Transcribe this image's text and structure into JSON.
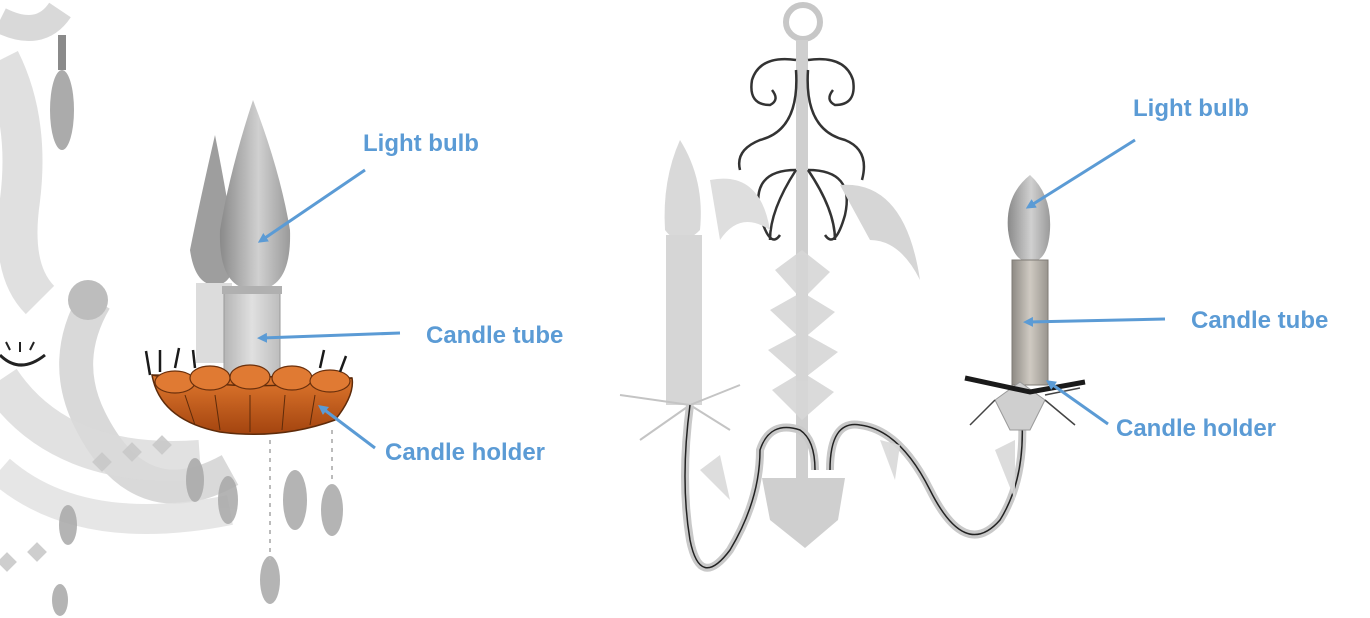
{
  "left_panel": {
    "labels": {
      "light_bulb": "Light bulb",
      "candle_tube": "Candle tube",
      "candle_holder": "Candle holder"
    }
  },
  "right_panel": {
    "labels": {
      "light_bulb": "Light bulb",
      "candle_tube": "Candle tube",
      "candle_holder": "Candle holder"
    }
  },
  "colors": {
    "label": "#5b9bd5",
    "arrow": "#5b9bd5",
    "holder_orange": "#c0571a",
    "grey_light": "#d6d6d6",
    "grey_mid": "#a9a9a9",
    "wire_dark": "#333333"
  }
}
